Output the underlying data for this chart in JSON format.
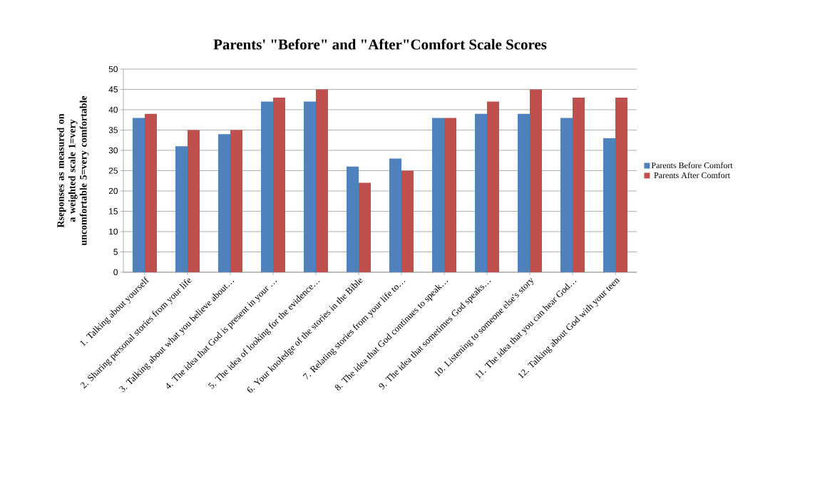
{
  "chart_data": {
    "type": "bar",
    "title": "Parents' \"Before\" and \"After\"Comfort Scale Scores",
    "ylabel": "Rseponses as measured on a weighted scale 1=very uncomfortable 5=very comfortable",
    "categories": [
      "1. Talking about yourself",
      "2. Sharing personal stories from your life",
      "3. Talking about what you believe about…",
      "4. The idea that God is present in your …",
      "5. The idea of looking for the evidence…",
      "6. Your knoledge of the stories in the Bible",
      "7. Relating stories from your life to…",
      "8. The idea that God continues to speak…",
      "9. The idea that sometimes God speaks…",
      "10. Listening to someone else's story",
      "11. The idea that you can hear God…",
      "12. Talking about God with your teen"
    ],
    "series": [
      {
        "name": "Parents Before Comfort",
        "color": "#4f81bd",
        "values": [
          38,
          31,
          34,
          42,
          42,
          26,
          28,
          38,
          39,
          39,
          38,
          33
        ]
      },
      {
        "name": "Parents After Comfort",
        "color": "#c0504d",
        "values": [
          39,
          35,
          35,
          43,
          45,
          22,
          25,
          38,
          42,
          45,
          43,
          43
        ]
      }
    ],
    "ylim": [
      0,
      50
    ],
    "yticks": [
      0,
      5,
      10,
      15,
      20,
      25,
      30,
      35,
      40,
      45,
      50
    ],
    "grid": "y",
    "legend": "right"
  }
}
